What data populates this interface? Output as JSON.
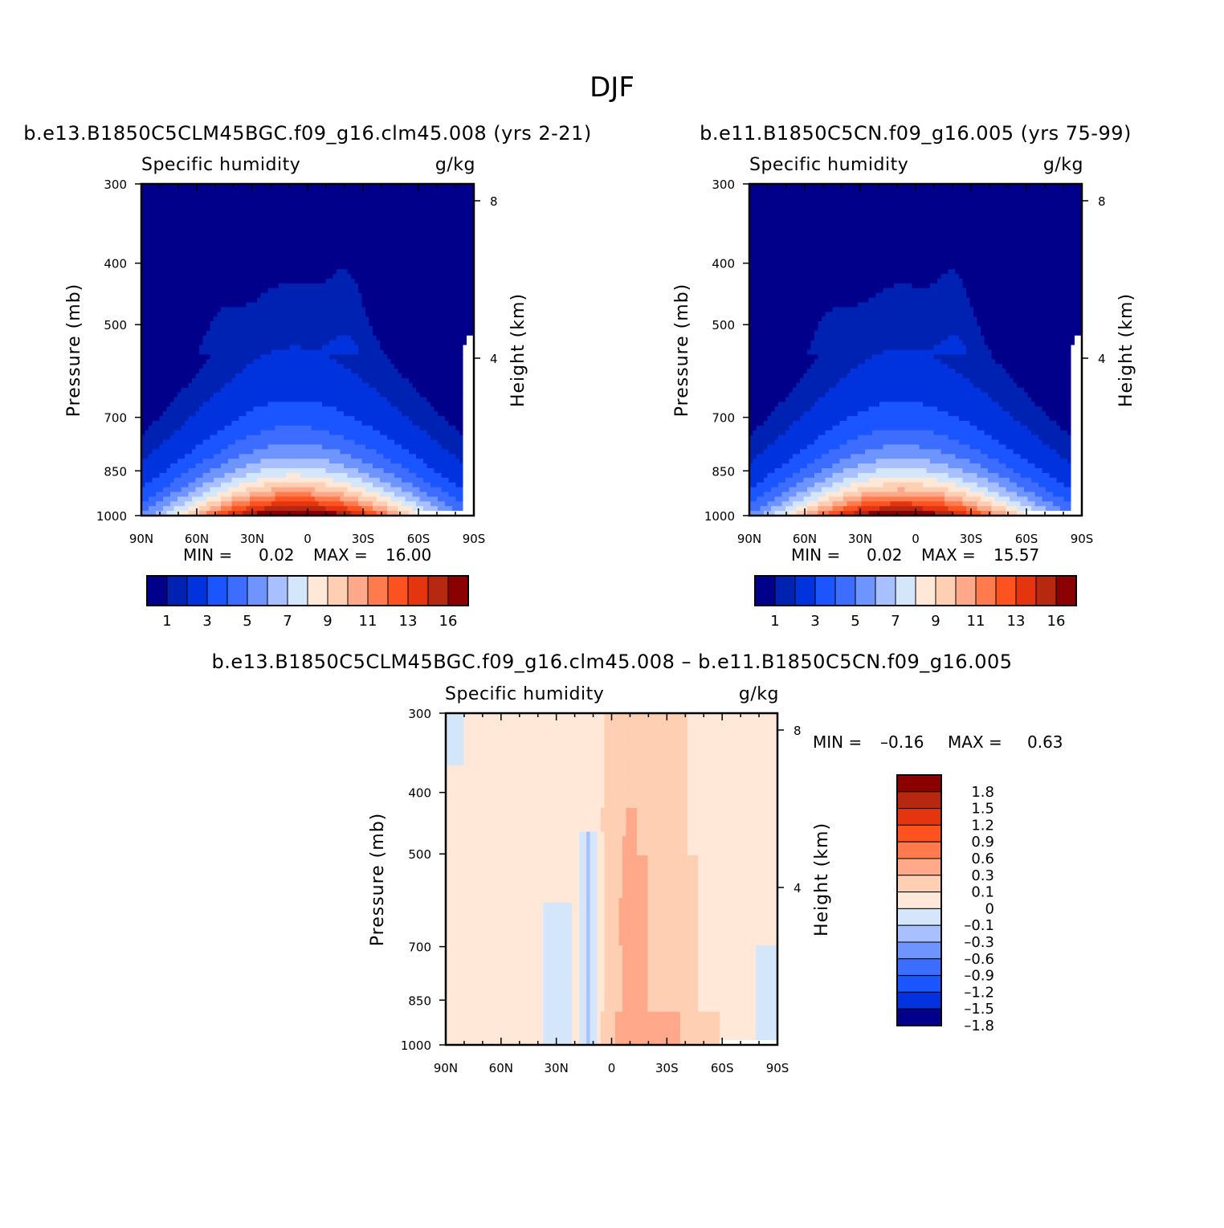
{
  "figure_title": "DJF",
  "colors": {
    "qpalette": [
      "#00008b",
      "#0022b3",
      "#0033dd",
      "#1a55ff",
      "#3d6dff",
      "#6e95ff",
      "#a8c0ff",
      "#d4e6fa",
      "#ffe8d8",
      "#ffcfb3",
      "#ffa98a",
      "#ff7a4d",
      "#ff5221",
      "#e53510",
      "#b72810",
      "#8b0000"
    ],
    "diffpalette": [
      "#00008b",
      "#0033dd",
      "#1a55ff",
      "#3d6dff",
      "#6e95ff",
      "#a8c0ff",
      "#d4e6fa",
      "#ffe8d8",
      "#ffcfb3",
      "#ffa98a",
      "#ff7a4d",
      "#ff5221",
      "#e53510",
      "#b72810",
      "#8b0000"
    ],
    "missing": "#ffffff"
  },
  "chart_data": [
    {
      "type": "heatmap",
      "title": "b.e13.B1850C5CLM45BGC.f09_g16.clm45.008 (yrs 2-21)",
      "subtitle_left": "Specific humidity",
      "subtitle_right": "g/kg",
      "ylabel": "Pressure (mb)",
      "y2label": "Height (km)",
      "x_ticks": [
        "90N",
        "60N",
        "30N",
        "0",
        "30S",
        "60S",
        "90S"
      ],
      "x_range": [
        90,
        -90
      ],
      "y_ticks": [
        "300",
        "400",
        "500",
        "700",
        "850",
        "1000"
      ],
      "y_range": [
        300,
        1000
      ],
      "y_scale": "log",
      "y2_ticks": [
        "8",
        "4"
      ],
      "min_label": "MIN =",
      "min_value": "0.02",
      "max_label": "MAX =",
      "max_value": "16.00",
      "peak": 16.0,
      "colorbar_orientation": "horizontal",
      "colorbar_labels": [
        "1",
        "3",
        "5",
        "7",
        "9",
        "11",
        "13",
        "16"
      ]
    },
    {
      "type": "heatmap",
      "title": "b.e11.B1850C5CN.f09_g16.005 (yrs 75-99)",
      "subtitle_left": "Specific humidity",
      "subtitle_right": "g/kg",
      "ylabel": "Pressure (mb)",
      "y2label": "Height (km)",
      "x_ticks": [
        "90N",
        "60N",
        "30N",
        "0",
        "30S",
        "60S",
        "90S"
      ],
      "x_range": [
        90,
        -90
      ],
      "y_ticks": [
        "300",
        "400",
        "500",
        "700",
        "850",
        "1000"
      ],
      "y_range": [
        300,
        1000
      ],
      "y_scale": "log",
      "y2_ticks": [
        "8",
        "4"
      ],
      "min_label": "MIN =",
      "min_value": "0.02",
      "max_label": "MAX =",
      "max_value": "15.57",
      "peak": 15.57,
      "colorbar_orientation": "horizontal",
      "colorbar_labels": [
        "1",
        "3",
        "5",
        "7",
        "9",
        "11",
        "13",
        "16"
      ]
    },
    {
      "type": "heatmap",
      "title": "b.e13.B1850C5CLM45BGC.f09_g16.clm45.008 – b.e11.B1850C5CN.f09_g16.005",
      "subtitle_left": "Specific humidity",
      "subtitle_right": "g/kg",
      "ylabel": "Pressure (mb)",
      "y2label": "Height (km)",
      "x_ticks": [
        "90N",
        "60N",
        "30N",
        "0",
        "30S",
        "60S",
        "90S"
      ],
      "x_range": [
        90,
        -90
      ],
      "y_ticks": [
        "300",
        "400",
        "500",
        "700",
        "850",
        "1000"
      ],
      "y_range": [
        300,
        1000
      ],
      "y_scale": "log",
      "y2_ticks": [
        "8",
        "4"
      ],
      "min_label": "MIN =",
      "min_value": "–0.16",
      "max_label": "MAX =",
      "max_value": "0.63",
      "colorbar_orientation": "vertical",
      "colorbar_labels": [
        "1.8",
        "1.5",
        "1.2",
        "0.9",
        "0.6",
        "0.3",
        "0.1",
        "0",
        "–0.1",
        "–0.3",
        "–0.6",
        "–0.9",
        "–1.2",
        "–1.5",
        "–1.8"
      ]
    }
  ]
}
